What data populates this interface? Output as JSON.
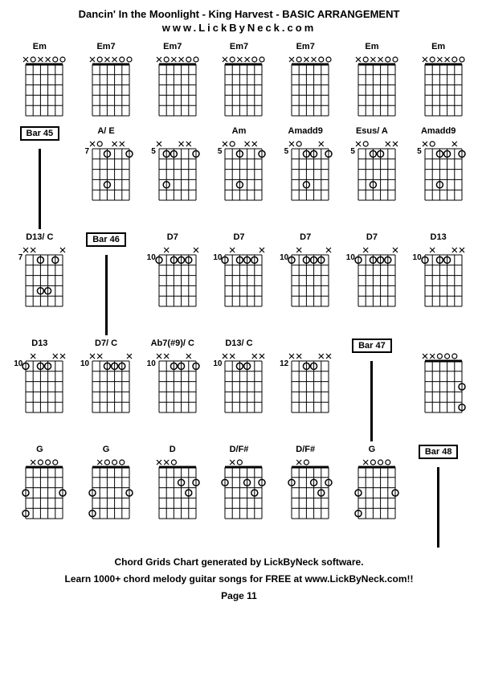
{
  "title": "Dancin' In the Moonlight - King Harvest - BASIC ARRANGEMENT",
  "website": "www.LickByNeck.com",
  "footer1": "Chord Grids Chart generated by LickByNeck software.",
  "footer2": "Learn 1000+ chord melody guitar songs for FREE at www.LickByNeck.com!!",
  "page": "Page 11",
  "diagram_style": {
    "grid_color": "#000000",
    "string_count": 6,
    "fret_count": 5,
    "width": 54,
    "height": 80,
    "dot_radius": 4,
    "open_radius": 3
  },
  "cells": [
    {
      "type": "chord",
      "label": "Em",
      "fret": "",
      "top": [
        "x",
        "o",
        "x",
        "x",
        "o",
        "o"
      ],
      "dots": []
    },
    {
      "type": "chord",
      "label": "Em7",
      "fret": "",
      "top": [
        "x",
        "o",
        "x",
        "x",
        "o",
        "o"
      ],
      "dots": []
    },
    {
      "type": "chord",
      "label": "Em7",
      "fret": "",
      "top": [
        "x",
        "o",
        "x",
        "x",
        "o",
        "o"
      ],
      "dots": []
    },
    {
      "type": "chord",
      "label": "Em7",
      "fret": "",
      "top": [
        "x",
        "o",
        "x",
        "x",
        "o",
        "o"
      ],
      "dots": []
    },
    {
      "type": "chord",
      "label": "Em7",
      "fret": "",
      "top": [
        "x",
        "o",
        "x",
        "x",
        "o",
        "o"
      ],
      "dots": []
    },
    {
      "type": "chord",
      "label": "Em",
      "fret": "",
      "top": [
        "x",
        "o",
        "x",
        "x",
        "o",
        "o"
      ],
      "dots": []
    },
    {
      "type": "chord",
      "label": "Em",
      "fret": "",
      "top": [
        "x",
        "o",
        "x",
        "x",
        "o",
        "o"
      ],
      "dots": []
    },
    {
      "type": "bar",
      "label": "Bar 45"
    },
    {
      "type": "chord",
      "label": "A/ E",
      "fret": "7",
      "top": [
        "x",
        "o",
        "",
        "x",
        "x",
        ""
      ],
      "dots": [
        [
          3,
          1
        ],
        [
          6,
          1
        ],
        [
          3,
          4
        ]
      ]
    },
    {
      "type": "chord",
      "label": "",
      "fret": "5",
      "top": [
        "x",
        "",
        "",
        "x",
        "x",
        ""
      ],
      "dots": [
        [
          2,
          1
        ],
        [
          3,
          1
        ],
        [
          6,
          1
        ],
        [
          2,
          4
        ]
      ]
    },
    {
      "type": "chord",
      "label": "Am",
      "fret": "5",
      "top": [
        "x",
        "o",
        "",
        "x",
        "x",
        ""
      ],
      "dots": [
        [
          3,
          1
        ],
        [
          6,
          1
        ],
        [
          3,
          4
        ]
      ]
    },
    {
      "type": "chord",
      "label": "Amadd9",
      "fret": "5",
      "top": [
        "x",
        "o",
        "",
        "",
        "x",
        ""
      ],
      "dots": [
        [
          3,
          1
        ],
        [
          4,
          1
        ],
        [
          6,
          1
        ],
        [
          3,
          4
        ]
      ]
    },
    {
      "type": "chord",
      "label": "Esus/ A",
      "fret": "5",
      "top": [
        "x",
        "o",
        "",
        "",
        "x",
        "x"
      ],
      "dots": [
        [
          3,
          1
        ],
        [
          4,
          1
        ],
        [
          3,
          4
        ]
      ]
    },
    {
      "type": "chord",
      "label": "Amadd9",
      "fret": "5",
      "top": [
        "x",
        "o",
        "",
        "",
        "x",
        ""
      ],
      "dots": [
        [
          3,
          1
        ],
        [
          4,
          1
        ],
        [
          6,
          1
        ],
        [
          3,
          4
        ]
      ]
    },
    {
      "type": "chord",
      "label": "D13/ C",
      "fret": "7",
      "top": [
        "x",
        "x",
        "",
        "",
        "",
        "x"
      ],
      "dots": [
        [
          3,
          1
        ],
        [
          5,
          1
        ],
        [
          3,
          4
        ],
        [
          4,
          4
        ]
      ]
    },
    {
      "type": "bar",
      "label": "Bar 46"
    },
    {
      "type": "chord",
      "label": "D7",
      "fret": "10",
      "top": [
        "",
        "x",
        "",
        "",
        "",
        "x"
      ],
      "dots": [
        [
          1,
          1
        ],
        [
          3,
          1
        ],
        [
          4,
          1
        ],
        [
          5,
          1
        ]
      ]
    },
    {
      "type": "chord",
      "label": "D7",
      "fret": "10",
      "top": [
        "",
        "x",
        "",
        "",
        "",
        "x"
      ],
      "dots": [
        [
          1,
          1
        ],
        [
          3,
          1
        ],
        [
          4,
          1
        ],
        [
          5,
          1
        ]
      ]
    },
    {
      "type": "chord",
      "label": "D7",
      "fret": "10",
      "top": [
        "",
        "x",
        "",
        "",
        "",
        "x"
      ],
      "dots": [
        [
          1,
          1
        ],
        [
          3,
          1
        ],
        [
          4,
          1
        ],
        [
          5,
          1
        ]
      ]
    },
    {
      "type": "chord",
      "label": "D7",
      "fret": "10",
      "top": [
        "",
        "x",
        "",
        "",
        "",
        "x"
      ],
      "dots": [
        [
          1,
          1
        ],
        [
          3,
          1
        ],
        [
          4,
          1
        ],
        [
          5,
          1
        ]
      ]
    },
    {
      "type": "chord",
      "label": "D13",
      "fret": "10",
      "top": [
        "",
        "x",
        "",
        "",
        "x",
        "x"
      ],
      "dots": [
        [
          1,
          1
        ],
        [
          3,
          1
        ],
        [
          4,
          1
        ]
      ]
    },
    {
      "type": "chord",
      "label": "D13",
      "fret": "10",
      "top": [
        "",
        "x",
        "",
        "",
        "x",
        "x"
      ],
      "dots": [
        [
          1,
          1
        ],
        [
          3,
          1
        ],
        [
          4,
          1
        ]
      ]
    },
    {
      "type": "chord",
      "label": "D7/ C",
      "fret": "10",
      "top": [
        "x",
        "x",
        "",
        "",
        "",
        "x"
      ],
      "dots": [
        [
          3,
          1
        ],
        [
          4,
          1
        ],
        [
          5,
          1
        ]
      ]
    },
    {
      "type": "chord",
      "label": "Ab7(#9)/ C",
      "fret": "10",
      "top": [
        "x",
        "x",
        "",
        "",
        "x",
        ""
      ],
      "dots": [
        [
          3,
          1
        ],
        [
          4,
          1
        ],
        [
          6,
          1
        ]
      ]
    },
    {
      "type": "chord",
      "label": "D13/ C",
      "fret": "10",
      "top": [
        "x",
        "x",
        "",
        "",
        "x",
        "x"
      ],
      "dots": [
        [
          3,
          1
        ],
        [
          4,
          1
        ]
      ]
    },
    {
      "type": "chord",
      "label": "",
      "fret": "12",
      "top": [
        "x",
        "x",
        "",
        "",
        "x",
        "x"
      ],
      "dots": [
        [
          3,
          1
        ],
        [
          4,
          1
        ]
      ]
    },
    {
      "type": "bar",
      "label": "Bar 47"
    },
    {
      "type": "chord",
      "label": "",
      "fret": "",
      "top": [
        "x",
        "x",
        "o",
        "o",
        "o",
        ""
      ],
      "dots": [
        [
          6,
          3
        ],
        [
          6,
          5
        ]
      ]
    },
    {
      "type": "chord",
      "label": "G",
      "fret": "",
      "top": [
        "",
        "x",
        "o",
        "o",
        "o",
        ""
      ],
      "dots": [
        [
          1,
          3
        ],
        [
          6,
          3
        ],
        [
          1,
          5
        ]
      ]
    },
    {
      "type": "chord",
      "label": "G",
      "fret": "",
      "top": [
        "",
        "x",
        "o",
        "o",
        "o",
        ""
      ],
      "dots": [
        [
          1,
          3
        ],
        [
          6,
          3
        ],
        [
          1,
          5
        ]
      ]
    },
    {
      "type": "chord",
      "label": "D",
      "fret": "",
      "top": [
        "x",
        "x",
        "o",
        "",
        "",
        ""
      ],
      "dots": [
        [
          4,
          2
        ],
        [
          6,
          2
        ],
        [
          5,
          3
        ]
      ]
    },
    {
      "type": "chord",
      "label": "D/F#",
      "fret": "",
      "top": [
        "",
        "x",
        "o",
        "",
        "",
        ""
      ],
      "dots": [
        [
          1,
          2
        ],
        [
          4,
          2
        ],
        [
          6,
          2
        ],
        [
          5,
          3
        ]
      ]
    },
    {
      "type": "chord",
      "label": "D/F#",
      "fret": "",
      "top": [
        "",
        "x",
        "o",
        "",
        "",
        ""
      ],
      "dots": [
        [
          1,
          2
        ],
        [
          4,
          2
        ],
        [
          6,
          2
        ],
        [
          5,
          3
        ]
      ]
    },
    {
      "type": "chord",
      "label": "G",
      "fret": "",
      "top": [
        "",
        "x",
        "o",
        "o",
        "o",
        ""
      ],
      "dots": [
        [
          1,
          3
        ],
        [
          6,
          3
        ],
        [
          1,
          5
        ]
      ]
    },
    {
      "type": "bar",
      "label": "Bar 48"
    }
  ]
}
